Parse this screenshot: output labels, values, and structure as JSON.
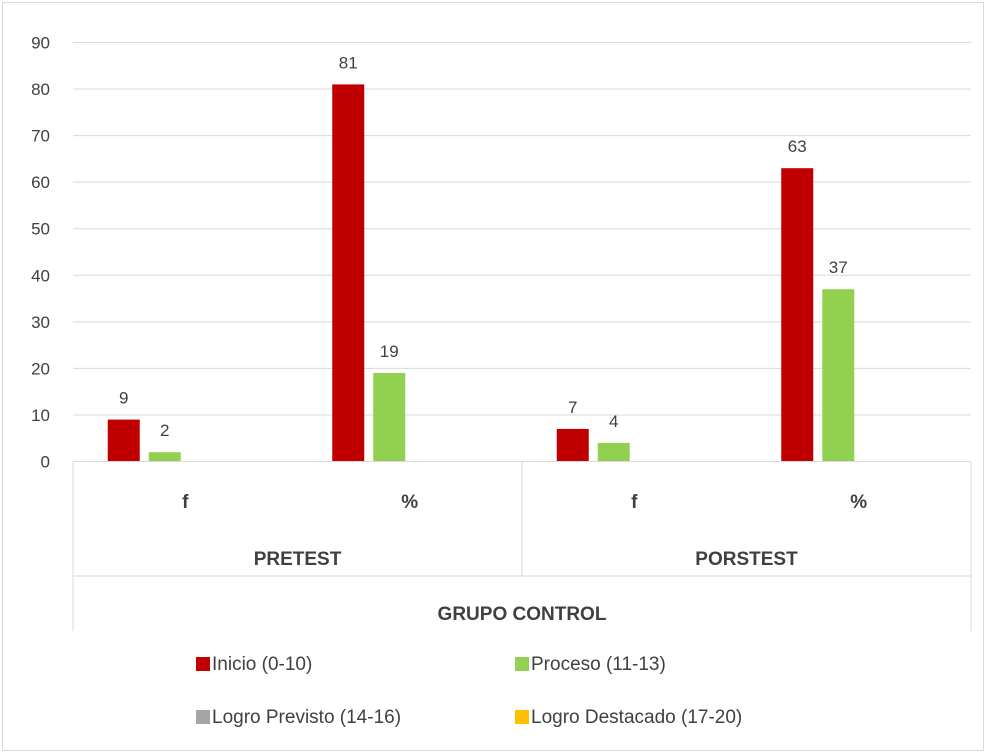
{
  "chart_data": {
    "type": "bar",
    "title": "",
    "xlabel": "",
    "ylabel": "",
    "ylim": [
      0,
      90
    ],
    "yticks": [
      0,
      10,
      20,
      30,
      40,
      50,
      60,
      70,
      80,
      90
    ],
    "grid": true,
    "legend_position": "bottom",
    "group_label": "GRUPO CONTROL",
    "groups": [
      {
        "label": "PRETEST",
        "categories": [
          "f",
          "%"
        ]
      },
      {
        "label": "PORSTEST",
        "categories": [
          "f",
          "%"
        ]
      }
    ],
    "categories": [
      "f",
      "%",
      "f",
      "%"
    ],
    "series": [
      {
        "name": "Inicio (0-10)",
        "color": "#C00000",
        "values": [
          9,
          81,
          7,
          63
        ]
      },
      {
        "name": "Proceso (11-13)",
        "color": "#92D050",
        "values": [
          2,
          19,
          4,
          37
        ]
      },
      {
        "name": "Logro Previsto  (14-16)",
        "color": "#A5A5A5",
        "values": [
          null,
          null,
          null,
          null
        ]
      },
      {
        "name": "Logro Destacado  (17-20)",
        "color": "#FFC000",
        "values": [
          null,
          null,
          null,
          null
        ]
      }
    ]
  }
}
